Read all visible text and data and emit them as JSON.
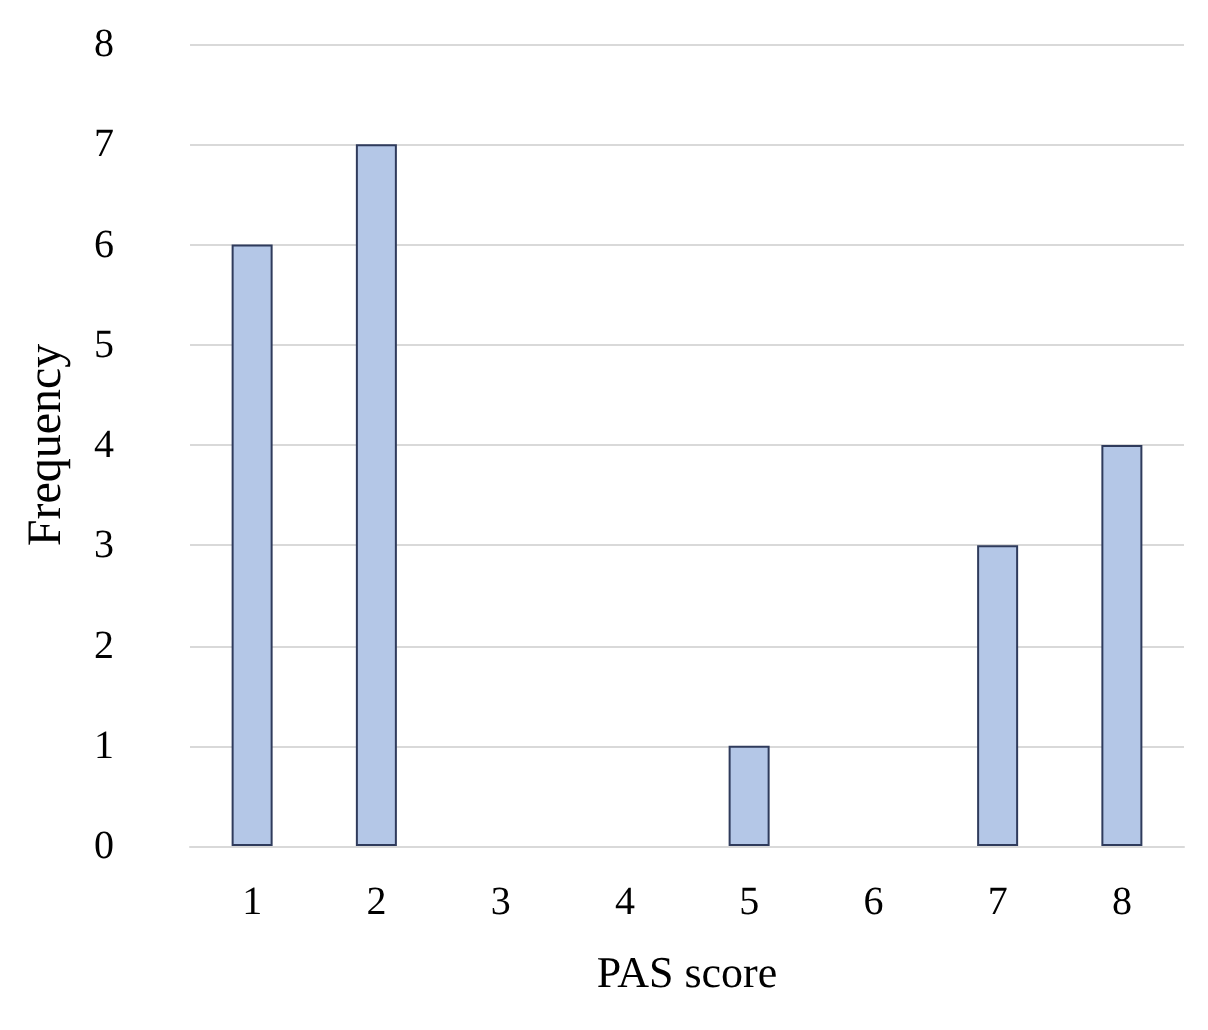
{
  "chart_data": {
    "type": "bar",
    "xlabel": "PAS score",
    "ylabel": "Frequency",
    "categories": [
      "1",
      "2",
      "3",
      "4",
      "5",
      "6",
      "7",
      "8"
    ],
    "values": [
      6,
      7,
      0,
      0,
      1,
      0,
      3,
      4
    ],
    "color": "#b4c7e7",
    "ylim": [
      0,
      8
    ],
    "yticks": [
      0,
      1,
      2,
      3,
      4,
      5,
      6,
      7,
      8
    ],
    "grid": "y"
  }
}
